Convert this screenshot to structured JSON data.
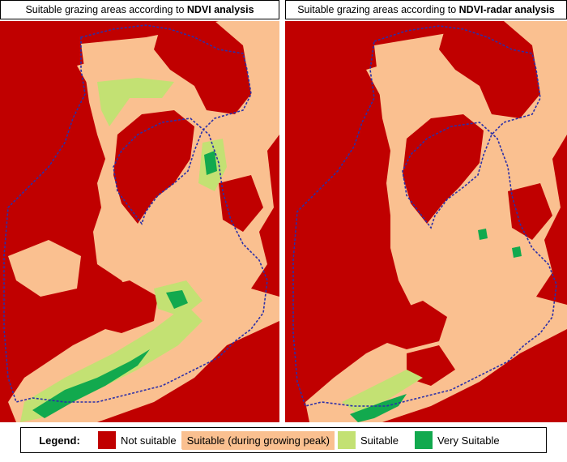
{
  "panels": [
    {
      "title_prefix": "Suitable grazing areas according to ",
      "title_bold": "NDVI analysis"
    },
    {
      "title_prefix": "Suitable grazing areas according to ",
      "title_bold": "NDVI-radar analysis"
    }
  ],
  "legend": {
    "title": "Legend:",
    "items": [
      {
        "label": "Not suitable",
        "color": "#c00000"
      },
      {
        "label": "Suitable (during growing peak)",
        "color": "#fac090"
      },
      {
        "label": "Suitable",
        "color": "#c3e173"
      },
      {
        "label": "Very Suitable",
        "color": "#12a94e"
      }
    ]
  },
  "boundary_color": "#2b2fa8"
}
